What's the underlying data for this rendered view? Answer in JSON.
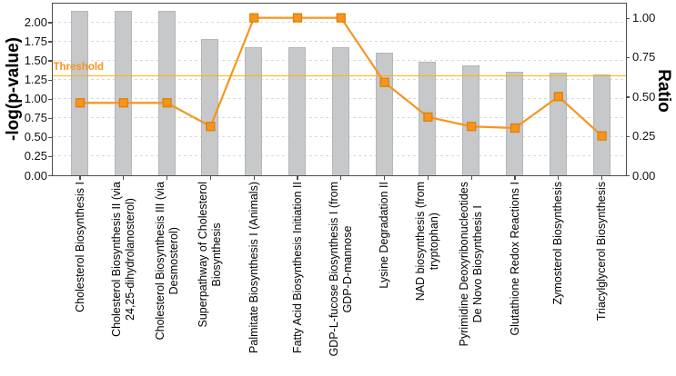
{
  "chart_data": {
    "type": "bar",
    "subtype": "combo-bar-line-dual-axis",
    "title": "",
    "legend": "none",
    "grid": "dashed-horizontal",
    "categories": [
      "Cholesterol Biosynthesis I",
      "Cholesterol Biosynthesis II (via\n24,25-dihydrolanosterol)",
      "Cholesterol Biosynthesis III (via\nDesmosterol)",
      "Superpathway of Cholesterol\nBiosynthesis",
      "Palmitate Biosynthesis I (Animals)",
      "Fatty Acid Biosynthesis Initiation II",
      "GDP-L-fucose Biosynthesis I (from\nGDP-D-mannose",
      "Lysine Degradation II",
      "NAD biosynthesis (from\ntryptophan)",
      "Pyrimidine Deoxyribonucleotides\nDe Novo Biosynthesis I",
      "Glutathione Redox Reactions I",
      "Zymosterol Biosynthesis",
      "Triacylglycerol Biosynthesis"
    ],
    "series": [
      {
        "name": "-log(p-value)",
        "type": "bar",
        "axis": "left",
        "values": [
          2.14,
          2.14,
          2.14,
          1.77,
          1.67,
          1.67,
          1.67,
          1.59,
          1.47,
          1.43,
          1.34,
          1.33,
          1.31
        ]
      },
      {
        "name": "Ratio",
        "type": "line",
        "axis": "right",
        "values": [
          0.46,
          0.46,
          0.46,
          0.31,
          1.0,
          1.0,
          1.0,
          0.59,
          0.37,
          0.31,
          0.3,
          0.5,
          0.25
        ]
      }
    ],
    "left_axis": {
      "title": "-log(p-value)",
      "tick_values": [
        2.0,
        1.75,
        1.5,
        1.25,
        1.0,
        0.75,
        0.5,
        0.25,
        0.0
      ],
      "ylim": [
        0,
        2.24
      ]
    },
    "right_axis": {
      "title": "Ratio",
      "tick_values": [
        1.0,
        0.75,
        0.5,
        0.25,
        0.0
      ],
      "ylim": [
        0,
        1.09
      ]
    },
    "threshold": {
      "label": "Threshold",
      "value": 1.3,
      "axis": "left"
    }
  },
  "colors": {
    "bar": "#C6C8CA",
    "bar_border": "#B4B6B8",
    "line": "#F7941E",
    "marker_border": "#DE7D00",
    "threshold_line": "#FFB300",
    "threshold_text": "#F7941E",
    "grid": "#D9D9D9",
    "axis": "#4D4D4D",
    "tick_text": "#111111"
  }
}
